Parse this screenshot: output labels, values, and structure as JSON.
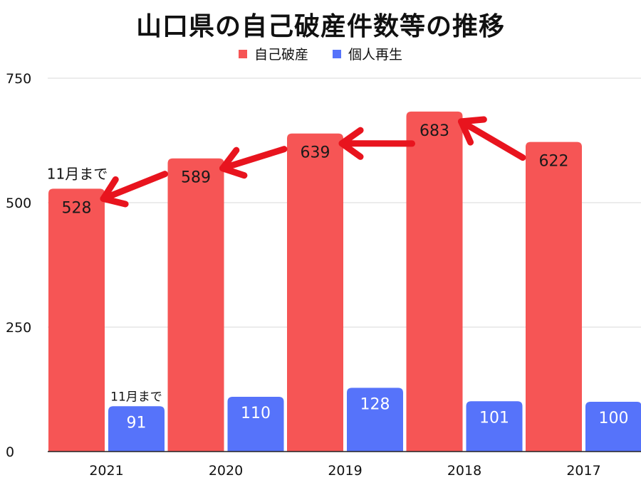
{
  "chart_data": {
    "type": "bar",
    "title": "山口県の自己破産件数等の推移",
    "categories": [
      "2021",
      "2020",
      "2019",
      "2018",
      "2017"
    ],
    "series": [
      {
        "name": "自己破産",
        "color": "#F65555",
        "values": [
          528,
          589,
          639,
          683,
          622
        ]
      },
      {
        "name": "個人再生",
        "color": "#5673FA",
        "values": [
          91,
          110,
          128,
          101,
          100
        ]
      }
    ],
    "ylim": [
      0,
      750
    ],
    "yticks": [
      0,
      250,
      500,
      750
    ],
    "grid": true,
    "legend_position": "top",
    "annotations": [
      {
        "category": "2021",
        "series": "自己破産",
        "text": "11月まで"
      },
      {
        "category": "2021",
        "series": "個人再生",
        "text": "11月まで"
      }
    ],
    "arrow_color": "#E8141E"
  }
}
